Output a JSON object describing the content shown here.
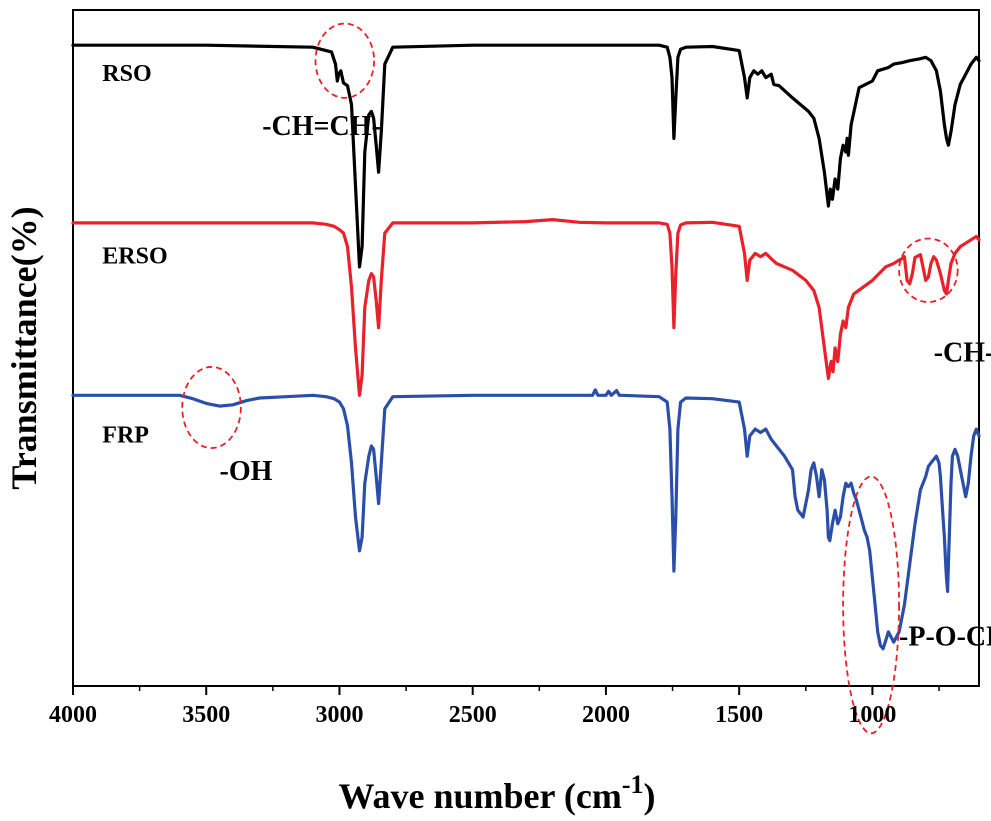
{
  "chart_data": {
    "type": "line",
    "title": "",
    "xlabel": "Wave number (cm",
    "xlabel_superscript": "-1",
    "xlabel_suffix": ")",
    "ylabel": "Transmittance(%)",
    "xlim": [
      4000,
      600
    ],
    "x_reversed": true,
    "ylim": [
      0,
      1
    ],
    "y_tick_labels_shown": false,
    "grid": false,
    "x_ticks": [
      4000,
      3500,
      3000,
      2500,
      2000,
      1500,
      1000
    ],
    "x_tick_labels": [
      "4000",
      "3500",
      "3000",
      "2500",
      "2000",
      "1500",
      "1000"
    ],
    "series": [
      {
        "name": "RSO",
        "color": "#000000",
        "x": [
          4000,
          3500,
          3100,
          3030,
          3015,
          3008,
          3003,
          2995,
          2985,
          2970,
          2955,
          2940,
          2925,
          2915,
          2905,
          2890,
          2880,
          2872,
          2862,
          2853,
          2843,
          2830,
          2800,
          2500,
          2000,
          1800,
          1770,
          1760,
          1752,
          1745,
          1738,
          1730,
          1720,
          1700,
          1600,
          1500,
          1480,
          1470,
          1460,
          1445,
          1430,
          1415,
          1400,
          1380,
          1370,
          1350,
          1300,
          1240,
          1220,
          1200,
          1180,
          1165,
          1158,
          1150,
          1140,
          1130,
          1120,
          1110,
          1100,
          1095,
          1090,
          1080,
          1050,
          1000,
          980,
          940,
          920,
          890,
          860,
          820,
          800,
          780,
          760,
          745,
          730,
          722,
          715,
          705,
          690,
          670,
          650,
          630,
          610,
          600
        ],
        "y": [
          0.948,
          0.948,
          0.945,
          0.938,
          0.92,
          0.895,
          0.905,
          0.91,
          0.892,
          0.888,
          0.86,
          0.74,
          0.62,
          0.65,
          0.79,
          0.845,
          0.85,
          0.84,
          0.8,
          0.76,
          0.82,
          0.92,
          0.945,
          0.948,
          0.948,
          0.948,
          0.945,
          0.93,
          0.9,
          0.81,
          0.87,
          0.93,
          0.942,
          0.945,
          0.946,
          0.94,
          0.9,
          0.87,
          0.9,
          0.91,
          0.905,
          0.91,
          0.9,
          0.905,
          0.89,
          0.888,
          0.87,
          0.85,
          0.84,
          0.81,
          0.76,
          0.71,
          0.735,
          0.72,
          0.75,
          0.735,
          0.78,
          0.8,
          0.79,
          0.81,
          0.785,
          0.83,
          0.885,
          0.895,
          0.91,
          0.915,
          0.92,
          0.922,
          0.925,
          0.928,
          0.93,
          0.925,
          0.91,
          0.88,
          0.83,
          0.81,
          0.8,
          0.82,
          0.86,
          0.89,
          0.905,
          0.92,
          0.93,
          0.925
        ]
      },
      {
        "name": "ERSO",
        "color": "#e8212a",
        "x": [
          4000,
          3500,
          3100,
          3050,
          3020,
          3000,
          2985,
          2970,
          2955,
          2940,
          2925,
          2915,
          2905,
          2890,
          2880,
          2872,
          2862,
          2853,
          2843,
          2830,
          2800,
          2500,
          2300,
          2200,
          2100,
          2000,
          1800,
          1770,
          1760,
          1752,
          1745,
          1738,
          1730,
          1720,
          1700,
          1600,
          1500,
          1480,
          1470,
          1460,
          1440,
          1420,
          1400,
          1380,
          1360,
          1300,
          1250,
          1220,
          1200,
          1180,
          1165,
          1155,
          1148,
          1140,
          1130,
          1120,
          1110,
          1100,
          1090,
          1070,
          1000,
          950,
          920,
          900,
          890,
          880,
          870,
          860,
          850,
          840,
          830,
          820,
          810,
          800,
          790,
          780,
          770,
          760,
          745,
          730,
          722,
          715,
          705,
          690,
          670,
          650,
          630,
          610,
          600
        ],
        "y": [
          0.685,
          0.685,
          0.685,
          0.683,
          0.68,
          0.675,
          0.67,
          0.65,
          0.59,
          0.5,
          0.43,
          0.46,
          0.56,
          0.6,
          0.61,
          0.605,
          0.57,
          0.53,
          0.6,
          0.67,
          0.685,
          0.685,
          0.687,
          0.69,
          0.686,
          0.685,
          0.685,
          0.683,
          0.67,
          0.62,
          0.53,
          0.61,
          0.67,
          0.682,
          0.685,
          0.686,
          0.68,
          0.64,
          0.6,
          0.63,
          0.64,
          0.635,
          0.64,
          0.632,
          0.625,
          0.615,
          0.6,
          0.585,
          0.56,
          0.5,
          0.455,
          0.48,
          0.465,
          0.5,
          0.48,
          0.52,
          0.54,
          0.53,
          0.56,
          0.58,
          0.6,
          0.62,
          0.625,
          0.63,
          0.632,
          0.635,
          0.6,
          0.595,
          0.61,
          0.634,
          0.636,
          0.638,
          0.62,
          0.6,
          0.605,
          0.625,
          0.635,
          0.63,
          0.61,
          0.585,
          0.58,
          0.6,
          0.625,
          0.64,
          0.65,
          0.655,
          0.66,
          0.665,
          0.66
        ]
      },
      {
        "name": "FRP",
        "color": "#2b4fa8",
        "x": [
          4000,
          3700,
          3600,
          3550,
          3500,
          3450,
          3400,
          3350,
          3300,
          3200,
          3100,
          3050,
          3020,
          3000,
          2985,
          2970,
          2955,
          2940,
          2925,
          2915,
          2905,
          2890,
          2880,
          2872,
          2862,
          2853,
          2843,
          2830,
          2800,
          2500,
          2050,
          2040,
          2030,
          2000,
          1990,
          1980,
          1960,
          1950,
          1940,
          1800,
          1770,
          1760,
          1752,
          1745,
          1738,
          1730,
          1720,
          1700,
          1600,
          1500,
          1480,
          1470,
          1460,
          1440,
          1420,
          1400,
          1380,
          1360,
          1330,
          1300,
          1290,
          1280,
          1270,
          1260,
          1250,
          1240,
          1230,
          1220,
          1210,
          1200,
          1190,
          1180,
          1170,
          1165,
          1160,
          1150,
          1140,
          1130,
          1120,
          1110,
          1100,
          1090,
          1080,
          1070,
          1060,
          1050,
          1040,
          1030,
          1020,
          1010,
          1000,
          990,
          980,
          970,
          960,
          940,
          920,
          900,
          880,
          860,
          840,
          820,
          800,
          790,
          780,
          770,
          760,
          750,
          745,
          740,
          735,
          730,
          725,
          722,
          718,
          715,
          710,
          705,
          700,
          690,
          680,
          670,
          660,
          650,
          640,
          630,
          620,
          610,
          600
        ],
        "y": [
          0.43,
          0.43,
          0.43,
          0.425,
          0.418,
          0.414,
          0.416,
          0.422,
          0.426,
          0.428,
          0.43,
          0.428,
          0.425,
          0.42,
          0.41,
          0.385,
          0.33,
          0.25,
          0.2,
          0.22,
          0.3,
          0.34,
          0.355,
          0.35,
          0.31,
          0.27,
          0.33,
          0.41,
          0.428,
          0.43,
          0.43,
          0.438,
          0.43,
          0.43,
          0.436,
          0.43,
          0.437,
          0.43,
          0.43,
          0.428,
          0.42,
          0.38,
          0.28,
          0.17,
          0.25,
          0.38,
          0.42,
          0.426,
          0.425,
          0.42,
          0.38,
          0.34,
          0.37,
          0.38,
          0.375,
          0.38,
          0.365,
          0.355,
          0.34,
          0.32,
          0.28,
          0.26,
          0.255,
          0.25,
          0.27,
          0.29,
          0.32,
          0.33,
          0.31,
          0.28,
          0.32,
          0.305,
          0.26,
          0.22,
          0.215,
          0.24,
          0.26,
          0.24,
          0.25,
          0.28,
          0.3,
          0.295,
          0.3,
          0.285,
          0.275,
          0.26,
          0.245,
          0.23,
          0.22,
          0.2,
          0.16,
          0.12,
          0.08,
          0.06,
          0.055,
          0.08,
          0.065,
          0.08,
          0.12,
          0.18,
          0.24,
          0.29,
          0.31,
          0.325,
          0.33,
          0.335,
          0.34,
          0.33,
          0.31,
          0.28,
          0.25,
          0.22,
          0.18,
          0.16,
          0.14,
          0.18,
          0.24,
          0.3,
          0.34,
          0.35,
          0.34,
          0.32,
          0.3,
          0.28,
          0.3,
          0.34,
          0.37,
          0.38,
          0.37
        ]
      }
    ],
    "series_labels": [
      {
        "text": "RSO",
        "x": 3890,
        "y": 0.895
      },
      {
        "text": "ERSO",
        "x": 3890,
        "y": 0.625
      },
      {
        "text": "FRP",
        "x": 3890,
        "y": 0.36
      }
    ],
    "annotations": [
      {
        "text": "-CH=CH-",
        "x": 3290,
        "y": 0.815
      },
      {
        "text": "-CH-O-CH-",
        "x": 770,
        "y": 0.48
      },
      {
        "text": "-OH",
        "x": 3450,
        "y": 0.305
      },
      {
        "text": "-P-O-CH-",
        "x": 900,
        "y": 0.06
      }
    ],
    "highlight_ellipses": [
      {
        "name": "alkene-highlight",
        "cx": 2980,
        "cy": 0.925,
        "rx": 110,
        "ry": 0.055
      },
      {
        "name": "epoxy-highlight",
        "cx": 790,
        "cy": 0.615,
        "rx": 110,
        "ry": 0.047
      },
      {
        "name": "hydroxyl-highlight",
        "cx": 3480,
        "cy": 0.412,
        "rx": 110,
        "ry": 0.06
      },
      {
        "name": "phosphate-highlight",
        "cx": 1005,
        "cy": 0.12,
        "rx": 105,
        "ry": 0.19
      }
    ],
    "highlight_color": "#e8212a"
  }
}
